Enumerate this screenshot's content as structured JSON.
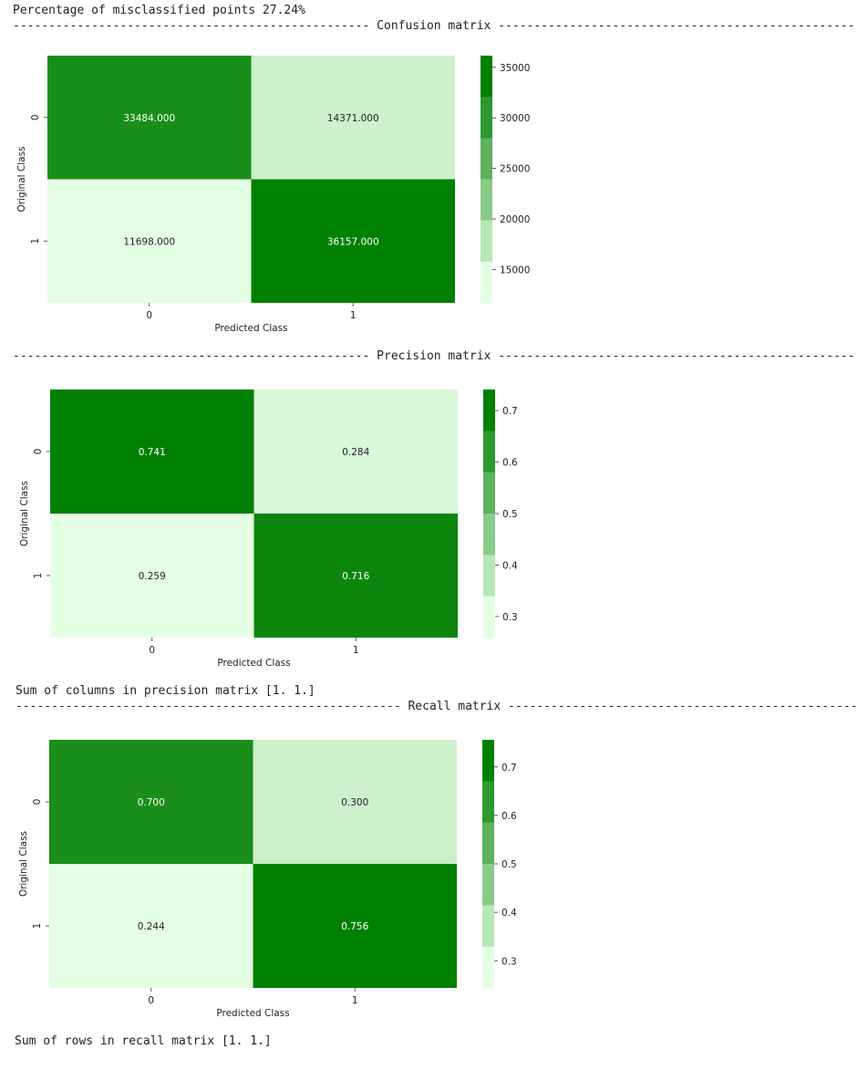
{
  "output": {
    "misclassified_text": "Percentage of misclassified points 27.24%",
    "confusion_header": "-------------------------------------------------- Confusion matrix --------------------------------------------------",
    "precision_header": "-------------------------------------------------- Precision matrix --------------------------------------------------",
    "precision_sum_text": "Sum of columns in precision matrix [1. 1.]",
    "recall_header": "------------------------------------------------------ Recall matrix ------------------------------------------------------",
    "recall_sum_text": "Sum of rows in recall matrix [1. 1.]"
  },
  "colors": {
    "low": "#e5ffe5",
    "high": "#008000"
  },
  "chart_data": [
    {
      "type": "heatmap",
      "name": "Confusion matrix",
      "xlabel": "Predicted Class",
      "ylabel": "Original Class",
      "x_categories": [
        "0",
        "1"
      ],
      "y_categories": [
        "0",
        "1"
      ],
      "values": [
        [
          33484.0,
          14371.0
        ],
        [
          11698.0,
          36157.0
        ]
      ],
      "annotations": [
        [
          "33484.000",
          "14371.000"
        ],
        [
          "11698.000",
          "36157.000"
        ]
      ],
      "vmin": 11698.0,
      "vmax": 36157.0,
      "colorbar_ticks": [
        15000,
        20000,
        25000,
        30000,
        35000
      ]
    },
    {
      "type": "heatmap",
      "name": "Precision matrix",
      "xlabel": "Predicted Class",
      "ylabel": "Original Class",
      "x_categories": [
        "0",
        "1"
      ],
      "y_categories": [
        "0",
        "1"
      ],
      "values": [
        [
          0.741,
          0.284
        ],
        [
          0.259,
          0.716
        ]
      ],
      "annotations": [
        [
          "0.741",
          "0.284"
        ],
        [
          "0.259",
          "0.716"
        ]
      ],
      "vmin": 0.259,
      "vmax": 0.741,
      "colorbar_ticks": [
        0.3,
        0.4,
        0.5,
        0.6,
        0.7
      ]
    },
    {
      "type": "heatmap",
      "name": "Recall matrix",
      "xlabel": "Predicted Class",
      "ylabel": "Original Class",
      "x_categories": [
        "0",
        "1"
      ],
      "y_categories": [
        "0",
        "1"
      ],
      "values": [
        [
          0.7,
          0.3
        ],
        [
          0.244,
          0.756
        ]
      ],
      "annotations": [
        [
          "0.700",
          "0.300"
        ],
        [
          "0.244",
          "0.756"
        ]
      ],
      "vmin": 0.244,
      "vmax": 0.756,
      "colorbar_ticks": [
        0.3,
        0.4,
        0.5,
        0.6,
        0.7
      ]
    }
  ]
}
